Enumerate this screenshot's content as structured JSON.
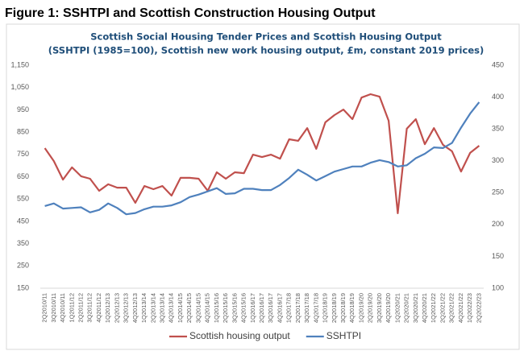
{
  "figure_title": "Figure 1: SSHTPI and Scottish Construction Housing Output",
  "chart_data": {
    "type": "line",
    "title": "Scottish Social Housing Tender Prices and Scottish Housing Output",
    "subtitle": "(SSHTPI (1985=100), Scottish new work housing output, £m, constant 2019 prices)",
    "categories": [
      "2Q2010/11",
      "3Q2010/11",
      "4Q2010/11",
      "1Q2011/12",
      "2Q2011/12",
      "3Q2011/12",
      "4Q2011/12",
      "1Q2012/13",
      "2Q2012/13",
      "3Q2012/13",
      "4Q2012/13",
      "1Q2013/14",
      "2Q2013/14",
      "3Q2013/14",
      "4Q2013/14",
      "1Q2014/15",
      "2Q2014/15",
      "3Q2014/15",
      "4Q2014/15",
      "1Q2015/16",
      "2Q2015/16",
      "3Q2015/16",
      "4Q2015/16",
      "1Q2016/17",
      "2Q2016/17",
      "3Q2016/17",
      "4Q2016/17",
      "1Q2017/18",
      "2Q2017/18",
      "3Q2017/18",
      "4Q2017/18",
      "1Q2018/19",
      "2Q2018/19",
      "3Q2018/19",
      "4Q2018/19",
      "1Q2019/20",
      "2Q2019/20",
      "3Q2019/20",
      "4Q2019/20",
      "1Q2020/21",
      "2Q2020/21",
      "3Q2020/21",
      "4Q2020/21",
      "1Q2021/22",
      "2Q2021/22",
      "3Q2021/22",
      "4Q2021/22",
      "1Q2022/23",
      "2Q2022/23"
    ],
    "series": [
      {
        "name": "Scottish housing output",
        "color": "#c0504d",
        "values": [
          778,
          720,
          637,
          692,
          652,
          641,
          587,
          616,
          601,
          601,
          533,
          608,
          594,
          608,
          565,
          645,
          645,
          641,
          587,
          670,
          641,
          670,
          666,
          749,
          738,
          749,
          731,
          818,
          811,
          868,
          775,
          894,
          926,
          951,
          908,
          1005,
          1020,
          1009,
          901,
          486,
          865,
          908,
          796,
          868,
          793,
          764,
          673,
          757,
          789
        ]
      },
      {
        "name": "SSHTPI",
        "color": "#4f81bd",
        "axis": "y2",
        "values": [
          229,
          233,
          225,
          226,
          227,
          219,
          223,
          233,
          226,
          216,
          218,
          224,
          228,
          228,
          230,
          235,
          243,
          247,
          252,
          257,
          248,
          249,
          256,
          256,
          254,
          254,
          262,
          273,
          286,
          278,
          269,
          276,
          283,
          287,
          291,
          291,
          297,
          301,
          298,
          291,
          293,
          304,
          311,
          321,
          320,
          328,
          352,
          374,
          392
        ]
      }
    ],
    "ylim": [
      150,
      1150
    ],
    "yticks": [
      150,
      250,
      350,
      450,
      550,
      650,
      750,
      850,
      950,
      {
        "value": 1050,
        "label": "1,050"
      },
      {
        "value": 1150,
        "label": "1,150"
      }
    ],
    "y2lim": [
      100,
      450
    ],
    "y2ticks": [
      100,
      150,
      200,
      250,
      300,
      350,
      400,
      450
    ],
    "legend": "bottom"
  }
}
